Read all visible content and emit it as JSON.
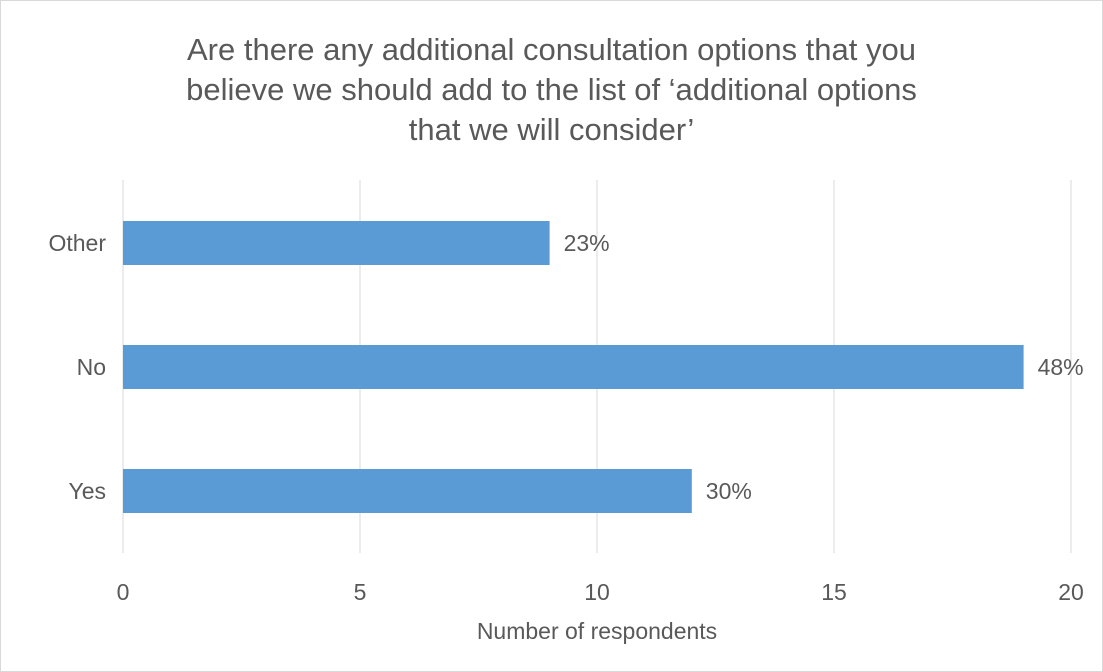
{
  "chart_data": {
    "type": "bar",
    "orientation": "horizontal",
    "title_lines": [
      "Are there any additional consultation options that you",
      "believe we should add to the list of ‘additional options",
      "that we will consider’"
    ],
    "categories": [
      "Other",
      "No",
      "Yes"
    ],
    "values": [
      9,
      19,
      12
    ],
    "data_labels": [
      "23%",
      "48%",
      "30%"
    ],
    "xlabel": "Number of respondents",
    "ylabel": "",
    "xlim": [
      0,
      20
    ],
    "xticks": [
      "0",
      "5",
      "10",
      "15",
      "20"
    ],
    "grid": "vertical",
    "legend": "none",
    "bar_color": "#5b9bd5",
    "grid_color": "#d9d9d9",
    "text_color": "#595959"
  }
}
